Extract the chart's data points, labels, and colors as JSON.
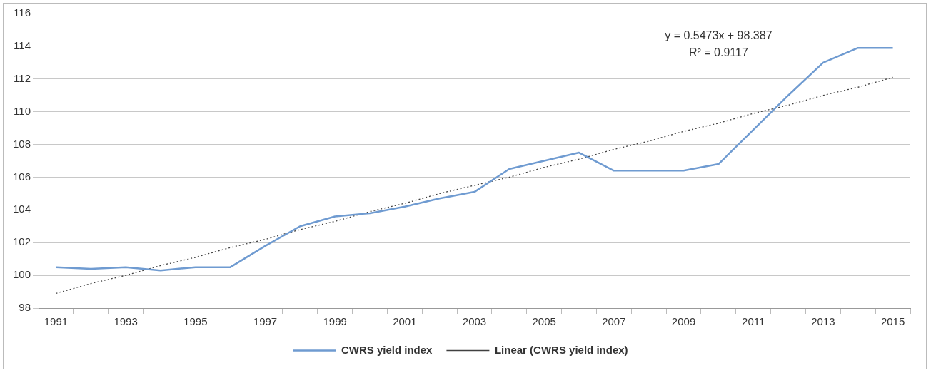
{
  "chart_data": {
    "type": "line",
    "categories": [
      "1991",
      null,
      "1993",
      null,
      "1995",
      null,
      "1997",
      null,
      "1999",
      null,
      "2001",
      null,
      "2003",
      null,
      "2005",
      null,
      "2007",
      null,
      "2009",
      null,
      "2011",
      null,
      "2013",
      null,
      "2015"
    ],
    "series": [
      {
        "name": "CWRS yield index",
        "color": "#6f9bd1",
        "line_style": "solid",
        "values": [
          100.5,
          100.4,
          100.5,
          100.3,
          100.5,
          100.5,
          101.8,
          103.0,
          103.6,
          103.8,
          104.2,
          104.7,
          105.1,
          106.5,
          107.0,
          107.5,
          106.4,
          106.4,
          106.4,
          106.8,
          108.9,
          111.0,
          113.0,
          113.9,
          113.9
        ]
      },
      {
        "name": "Linear (CWRS yield index)",
        "type": "line",
        "color": "#404040",
        "line_style": "dotted",
        "values": [
          98.9,
          99.5,
          100.0,
          100.6,
          101.1,
          101.7,
          102.2,
          102.8,
          103.3,
          103.9,
          104.4,
          105.0,
          105.5,
          106.0,
          106.6,
          107.1,
          107.7,
          108.2,
          108.8,
          109.3,
          109.9,
          110.4,
          111.0,
          111.5,
          112.1
        ]
      }
    ],
    "ylim": [
      98,
      116
    ],
    "yticks": [
      98,
      100,
      102,
      104,
      106,
      108,
      110,
      112,
      114,
      116
    ],
    "grid": "y",
    "legend": "bottom",
    "marker": "none",
    "annotations": [
      "y = 0.5473x + 98.387",
      "R² = 0.9117"
    ]
  }
}
